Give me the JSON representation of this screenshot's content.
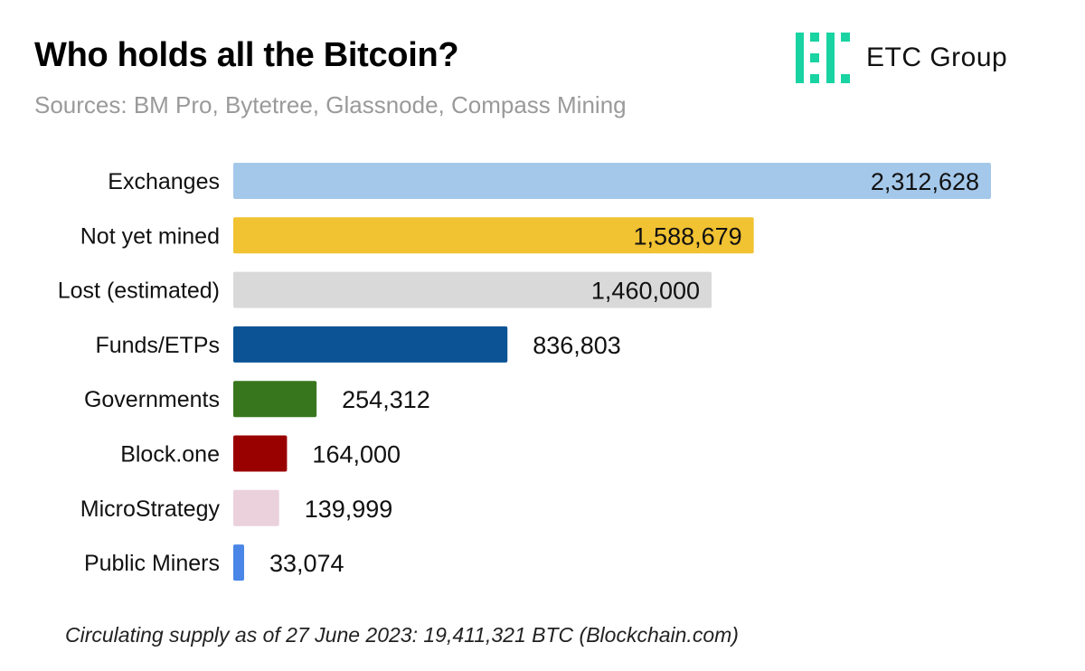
{
  "brand": {
    "name": "ETC Group",
    "logo_icon": "etc-group-logo-icon",
    "color": "#19d3a2"
  },
  "chart_data": {
    "type": "bar",
    "orientation": "horizontal",
    "title": "Who holds all the Bitcoin?",
    "subtitle": "Sources: BM Pro, Bytetree, Glassnode, Compass Mining",
    "categories": [
      "Exchanges",
      "Not yet mined",
      "Lost (estimated)",
      "Funds/ETPs",
      "Governments",
      "Block.one",
      "MicroStrategy",
      "Public Miners"
    ],
    "values": [
      2312628,
      1588679,
      1460000,
      836803,
      254312,
      164000,
      139999,
      33074
    ],
    "value_labels": [
      "2,312,628",
      "1,588,679",
      "1,460,000",
      "836,803",
      "254,312",
      "164,000",
      "139,999",
      "33,074"
    ],
    "colors": [
      "#a4c8ea",
      "#f1c232",
      "#d9d9d9",
      "#0b5394",
      "#38761d",
      "#990000",
      "#ead1dc",
      "#4a86e8"
    ],
    "label_colors": [
      "#111111",
      "#111111",
      "#111111",
      "#ffffff",
      "#111111",
      "#111111",
      "#111111",
      "#111111"
    ],
    "xlim": [
      0,
      2312628
    ],
    "xlabel": "",
    "ylabel": "",
    "grid": false,
    "legend": "none"
  },
  "footnote": "Circulating supply as of 27 June 2023: 19,411,321 BTC (Blockchain.com)"
}
